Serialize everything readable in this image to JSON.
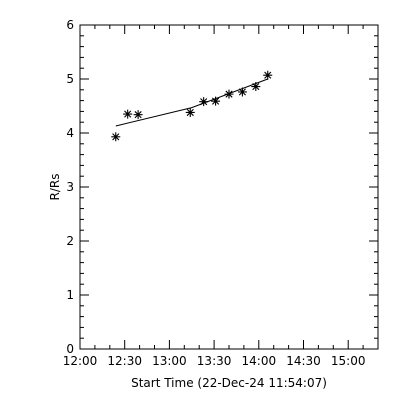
{
  "chart_data": {
    "type": "scatter",
    "xlabel": "Start Time (22-Dec-24 11:54:07)",
    "ylabel": "R/Rs",
    "x_ticks": [
      "12:00",
      "12:30",
      "13:00",
      "13:30",
      "14:00",
      "14:30",
      "15:00"
    ],
    "y_ticks": [
      "0",
      "1",
      "2",
      "3",
      "4",
      "5",
      "6"
    ],
    "xlim": [
      "12:00",
      "15:20"
    ],
    "ylim": [
      0,
      6
    ],
    "grid": false,
    "legend": "none",
    "series": [
      {
        "marker": "asterisk",
        "points": [
          {
            "x": "12:24",
            "y": 3.93
          },
          {
            "x": "12:32",
            "y": 4.35
          },
          {
            "x": "12:39",
            "y": 4.34
          },
          {
            "x": "13:14",
            "y": 4.38
          },
          {
            "x": "13:23",
            "y": 4.58
          },
          {
            "x": "13:31",
            "y": 4.59
          },
          {
            "x": "13:40",
            "y": 4.72
          },
          {
            "x": "13:49",
            "y": 4.76
          },
          {
            "x": "13:58",
            "y": 4.86
          },
          {
            "x": "14:06",
            "y": 5.07
          }
        ]
      },
      {
        "line": "fit",
        "points": [
          {
            "x": "12:24",
            "y": 4.13
          },
          {
            "x": "13:15",
            "y": 4.47
          },
          {
            "x": "14:06",
            "y": 5.0
          }
        ]
      }
    ]
  }
}
